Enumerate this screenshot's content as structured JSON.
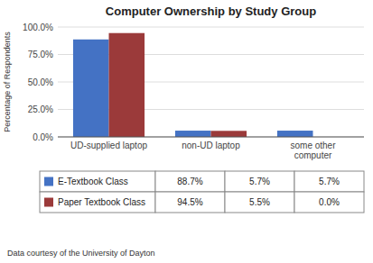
{
  "chart_data": {
    "type": "bar",
    "title": "Computer Ownership by Study Group",
    "categories": [
      "UD-supplied laptop",
      "non-UD laptop",
      "some other\ncomputer"
    ],
    "series": [
      {
        "name": "E-Textbook Class",
        "color": "#4472C4",
        "values": [
          88.7,
          5.7,
          5.7
        ],
        "value_labels": [
          "88.7%",
          "5.7%",
          "5.7%"
        ]
      },
      {
        "name": "Paper Textbook Class",
        "color": "#9B3A3A",
        "values": [
          94.5,
          5.5,
          0.0
        ],
        "value_labels": [
          "94.5%",
          "5.5%",
          "0.0%"
        ]
      }
    ],
    "ylabel": "Percentage of Respondents",
    "ylim": [
      0,
      100
    ],
    "yticks": [
      {
        "value": 0,
        "label": "0.0%"
      },
      {
        "value": 25,
        "label": "25.0%"
      },
      {
        "value": 50,
        "label": "50.0%"
      },
      {
        "value": 75,
        "label": "75.0%"
      },
      {
        "value": 100,
        "label": "100.0%"
      }
    ],
    "grid": true,
    "footnote": "Data courtesy of the University of Dayton"
  }
}
